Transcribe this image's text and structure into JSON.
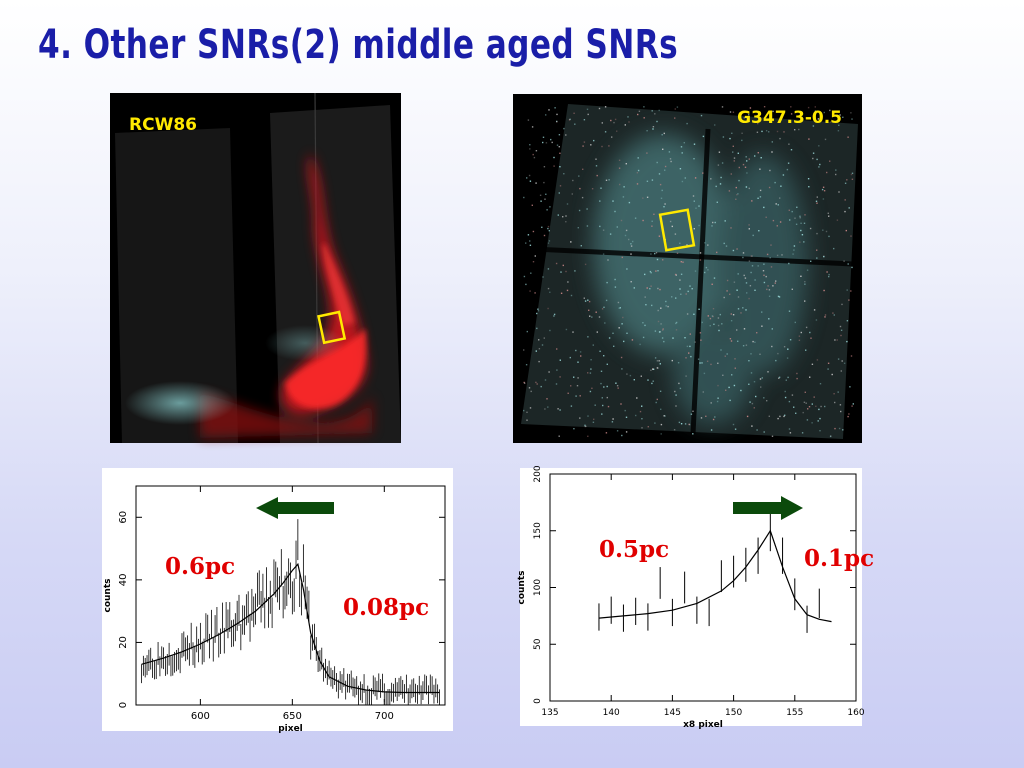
{
  "slide": {
    "title": "4. Other SNRs(2) middle aged SNRs"
  },
  "images": {
    "left_label": "RCW86",
    "right_label": "G347.3-0.5"
  },
  "colors": {
    "title": "#1a1ea8",
    "image_label": "#ffe900",
    "annotation": "#e00000",
    "arrow": "#0b4a0b",
    "box": "#ffe900"
  },
  "annotations": {
    "left_upstream": "0.6pc",
    "left_downstream": "0.08pc",
    "right_upstream": "0.5pc",
    "right_downstream": "0.1pc"
  },
  "chart_data": [
    {
      "type": "line",
      "xlabel": "pixel",
      "ylabel": "counts",
      "xlim": [
        565,
        733
      ],
      "ylim": [
        0,
        70
      ],
      "xticks": [
        600,
        650,
        700
      ],
      "yticks": [
        0,
        20,
        40,
        60
      ],
      "arrow_direction": "left",
      "model": {
        "x": [
          568,
          580,
          590,
          600,
          610,
          620,
          630,
          640,
          645,
          650,
          653,
          656,
          660,
          665,
          670,
          680,
          690,
          700,
          710,
          720,
          730
        ],
        "y": [
          13,
          15,
          17,
          19.5,
          22.5,
          26,
          30,
          35.5,
          39,
          43,
          45,
          37,
          23,
          14,
          9,
          6,
          4.8,
          4.2,
          4,
          4,
          4
        ]
      }
    },
    {
      "type": "line",
      "xlabel": "x8 pixel",
      "ylabel": "counts",
      "xlim": [
        135,
        160
      ],
      "ylim": [
        0,
        200
      ],
      "xticks": [
        135,
        140,
        145,
        150,
        155,
        160
      ],
      "yticks": [
        0,
        50,
        100,
        150,
        200
      ],
      "arrow_direction": "right",
      "model": {
        "x": [
          139,
          141,
          143,
          145,
          147,
          149,
          150,
          151,
          152,
          153,
          154,
          155,
          156,
          157,
          158
        ],
        "y": [
          73,
          75,
          77,
          80,
          86,
          97,
          106,
          118,
          133,
          150,
          118,
          90,
          76,
          72,
          70
        ]
      },
      "points": {
        "x": [
          139,
          140,
          141,
          142,
          143,
          144,
          145,
          146,
          147,
          148,
          149,
          150,
          151,
          152,
          153,
          154,
          155,
          156,
          157
        ],
        "y": [
          74,
          80,
          73,
          79,
          74,
          104,
          78,
          100,
          80,
          78,
          110,
          114,
          120,
          128,
          150,
          128,
          94,
          72,
          86
        ],
        "err": [
          12,
          12,
          12,
          12,
          12,
          14,
          12,
          14,
          12,
          12,
          14,
          14,
          15,
          16,
          18,
          16,
          14,
          12,
          13
        ]
      }
    }
  ]
}
